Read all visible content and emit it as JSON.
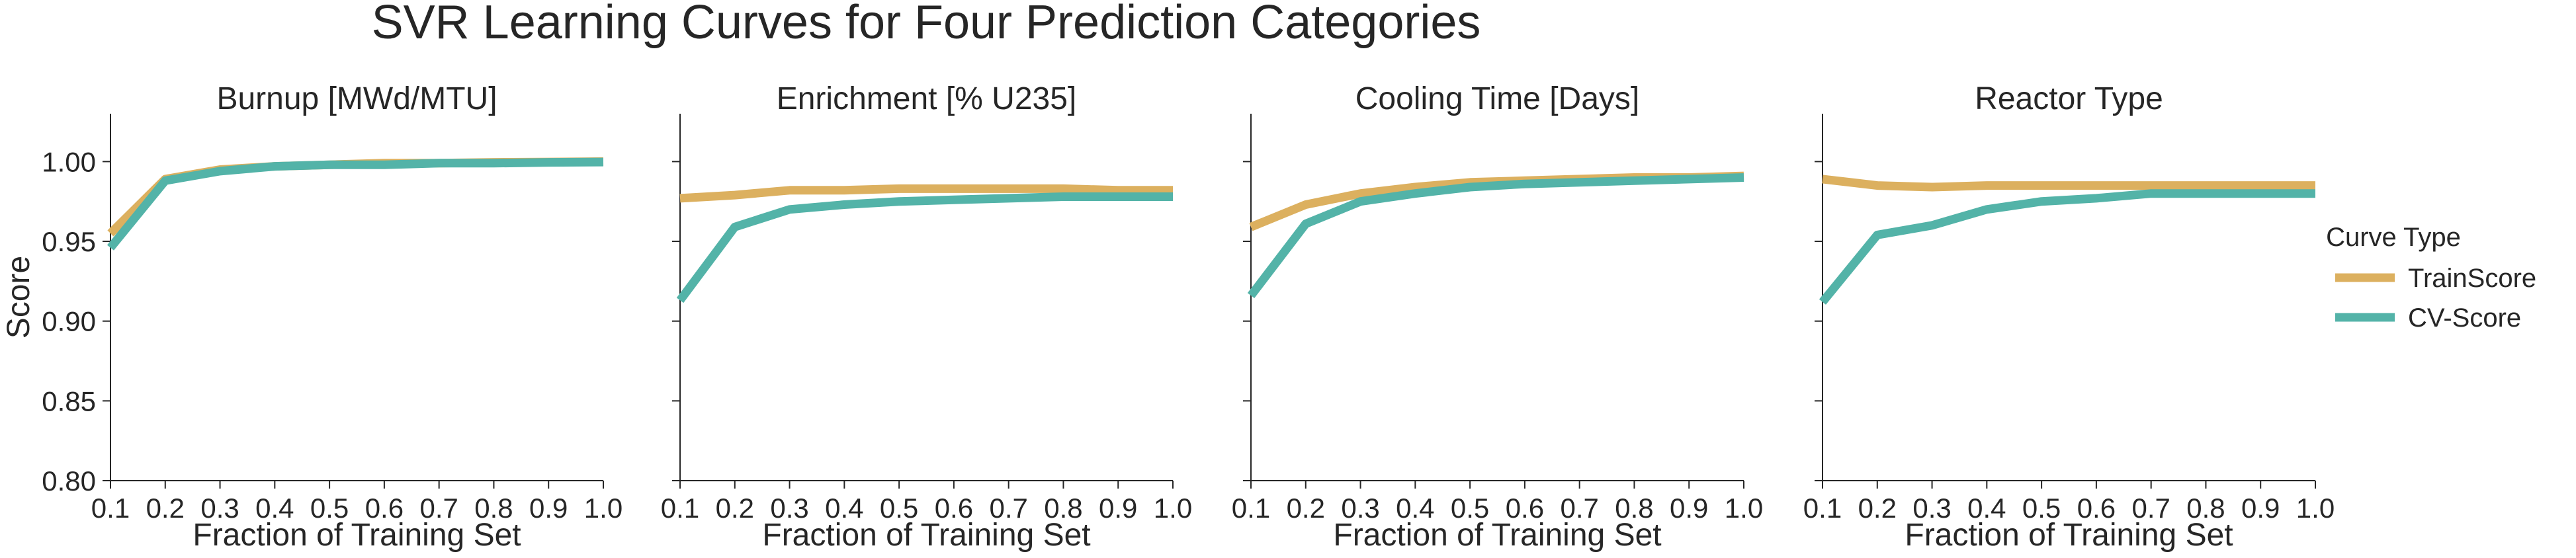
{
  "figure": {
    "title": "SVR Learning Curves for Four Prediction Categories"
  },
  "legend": {
    "title": "Curve Type",
    "items": [
      {
        "label": "TrainScore",
        "color": "#dcb05f"
      },
      {
        "label": "CV-Score",
        "color": "#53b3a8"
      }
    ]
  },
  "chart_data": [
    {
      "type": "line",
      "title": "Burnup [MWd/MTU]",
      "xlabel": "Fraction of Training Set",
      "ylabel": "Score",
      "xlim": [
        0.1,
        1.0
      ],
      "ylim": [
        0.8,
        1.03
      ],
      "xticks": [
        "0.1",
        "0.2",
        "0.3",
        "0.4",
        "0.5",
        "0.6",
        "0.7",
        "0.8",
        "0.9",
        "1.0"
      ],
      "yticks": [
        "0.80",
        "0.85",
        "0.90",
        "0.95",
        "1.00"
      ],
      "x": [
        0.1,
        0.2,
        0.3,
        0.4,
        0.5,
        0.6,
        0.7,
        0.8,
        0.9,
        1.0
      ],
      "series": [
        {
          "name": "TrainScore",
          "color": "#dcb05f",
          "values": [
            0.955,
            0.989,
            0.995,
            0.997,
            0.998,
            0.999,
            0.999,
            0.9995,
            0.9997,
            1.0
          ]
        },
        {
          "name": "CV-Score",
          "color": "#53b3a8",
          "values": [
            0.946,
            0.988,
            0.994,
            0.997,
            0.998,
            0.998,
            0.999,
            0.999,
            0.9995,
            0.9997
          ]
        }
      ]
    },
    {
      "type": "line",
      "title": "Enrichment [% U235]",
      "xlabel": "Fraction of Training Set",
      "ylabel": "",
      "xlim": [
        0.1,
        1.0
      ],
      "ylim": [
        0.8,
        1.03
      ],
      "xticks": [
        "0.1",
        "0.2",
        "0.3",
        "0.4",
        "0.5",
        "0.6",
        "0.7",
        "0.8",
        "0.9",
        "1.0"
      ],
      "yticks": [],
      "x": [
        0.1,
        0.2,
        0.3,
        0.4,
        0.5,
        0.6,
        0.7,
        0.8,
        0.9,
        1.0
      ],
      "series": [
        {
          "name": "TrainScore",
          "color": "#dcb05f",
          "values": [
            0.977,
            0.979,
            0.982,
            0.982,
            0.983,
            0.983,
            0.983,
            0.983,
            0.982,
            0.982
          ]
        },
        {
          "name": "CV-Score",
          "color": "#53b3a8",
          "values": [
            0.913,
            0.959,
            0.97,
            0.973,
            0.975,
            0.976,
            0.977,
            0.978,
            0.978,
            0.978
          ]
        }
      ]
    },
    {
      "type": "line",
      "title": "Cooling Time [Days]",
      "xlabel": "Fraction of Training Set",
      "ylabel": "",
      "xlim": [
        0.1,
        1.0
      ],
      "ylim": [
        0.8,
        1.03
      ],
      "xticks": [
        "0.1",
        "0.2",
        "0.3",
        "0.4",
        "0.5",
        "0.6",
        "0.7",
        "0.8",
        "0.9",
        "1.0"
      ],
      "yticks": [],
      "x": [
        0.1,
        0.2,
        0.3,
        0.4,
        0.5,
        0.6,
        0.7,
        0.8,
        0.9,
        1.0
      ],
      "series": [
        {
          "name": "TrainScore",
          "color": "#dcb05f",
          "values": [
            0.959,
            0.973,
            0.98,
            0.984,
            0.987,
            0.988,
            0.989,
            0.99,
            0.99,
            0.991
          ]
        },
        {
          "name": "CV-Score",
          "color": "#53b3a8",
          "values": [
            0.916,
            0.961,
            0.975,
            0.98,
            0.984,
            0.986,
            0.987,
            0.988,
            0.989,
            0.99
          ]
        }
      ]
    },
    {
      "type": "line",
      "title": "Reactor Type",
      "xlabel": "Fraction of Training Set",
      "ylabel": "",
      "xlim": [
        0.1,
        1.0
      ],
      "ylim": [
        0.8,
        1.03
      ],
      "xticks": [
        "0.1",
        "0.2",
        "0.3",
        "0.4",
        "0.5",
        "0.6",
        "0.7",
        "0.8",
        "0.9",
        "1.0"
      ],
      "yticks": [],
      "x": [
        0.1,
        0.2,
        0.3,
        0.4,
        0.5,
        0.6,
        0.7,
        0.8,
        0.9,
        1.0
      ],
      "series": [
        {
          "name": "TrainScore",
          "color": "#dcb05f",
          "values": [
            0.989,
            0.985,
            0.984,
            0.985,
            0.985,
            0.985,
            0.985,
            0.985,
            0.985,
            0.985
          ]
        },
        {
          "name": "CV-Score",
          "color": "#53b3a8",
          "values": [
            0.912,
            0.954,
            0.96,
            0.97,
            0.975,
            0.977,
            0.98,
            0.98,
            0.98,
            0.98
          ]
        }
      ]
    }
  ]
}
